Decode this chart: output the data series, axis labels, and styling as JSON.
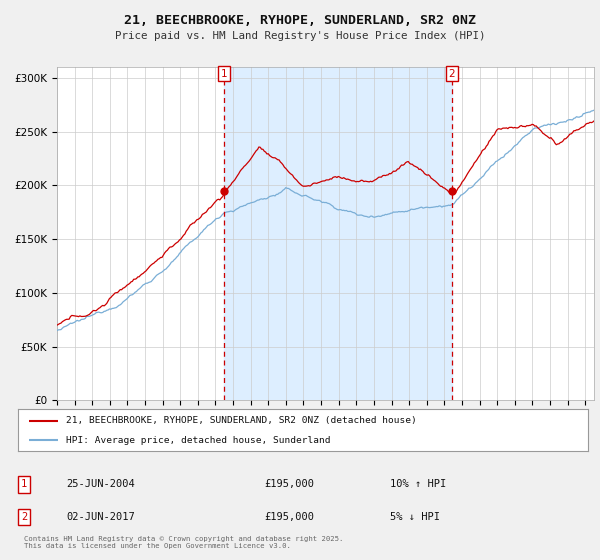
{
  "title": "21, BEECHBROOKE, RYHOPE, SUNDERLAND, SR2 0NZ",
  "subtitle": "Price paid vs. HM Land Registry's House Price Index (HPI)",
  "ylabel_ticks": [
    "£0",
    "£50K",
    "£100K",
    "£150K",
    "£200K",
    "£250K",
    "£300K"
  ],
  "ytick_values": [
    0,
    50000,
    100000,
    150000,
    200000,
    250000,
    300000
  ],
  "ylim": [
    0,
    310000
  ],
  "legend_line1": "21, BEECHBROOKE, RYHOPE, SUNDERLAND, SR2 0NZ (detached house)",
  "legend_line2": "HPI: Average price, detached house, Sunderland",
  "purchase1_date": "25-JUN-2004",
  "purchase1_price": "£195,000",
  "purchase1_hpi": "10% ↑ HPI",
  "purchase2_date": "02-JUN-2017",
  "purchase2_price": "£195,000",
  "purchase2_hpi": "5% ↓ HPI",
  "purchase1_x": 2004.48,
  "purchase1_y": 195000,
  "purchase2_x": 2017.42,
  "purchase2_y": 195000,
  "copyright_text": "Contains HM Land Registry data © Crown copyright and database right 2025.\nThis data is licensed under the Open Government Licence v3.0.",
  "line_color_property": "#cc0000",
  "line_color_hpi": "#7aaed6",
  "shade_color": "#ddeeff",
  "background_color": "#f0f0f0",
  "plot_bg_color": "#ffffff",
  "grid_color": "#cccccc",
  "vline_color": "#cc0000",
  "xmin": 1995.0,
  "xmax": 2025.5
}
